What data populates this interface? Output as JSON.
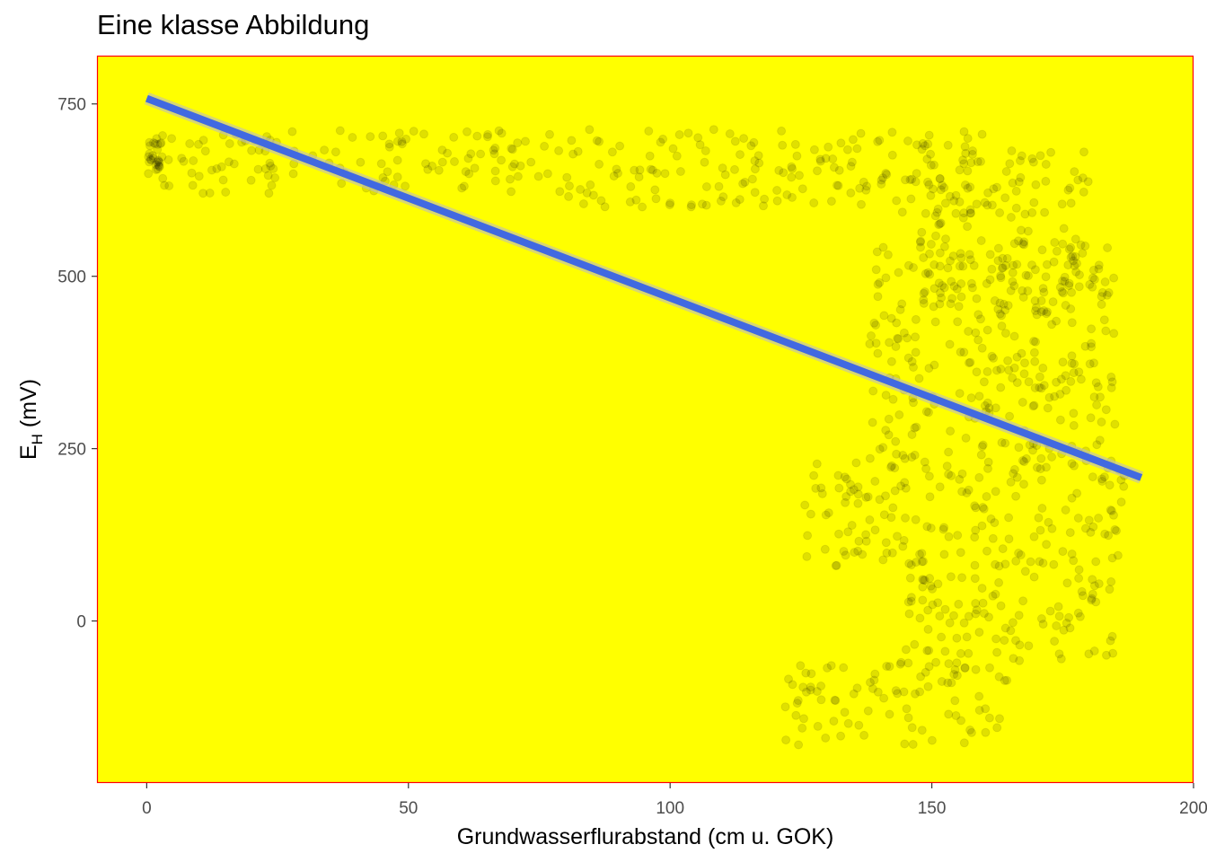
{
  "chart_data": {
    "type": "scatter",
    "title": "Eine klasse Abbildung",
    "xlabel": "Grundwasserflurabstand (cm u. GOK)",
    "ylabel": {
      "main": "E",
      "subscript": "H",
      "suffix": " (mV)"
    },
    "xlim": [
      -9.5,
      200
    ],
    "ylim": [
      -235,
      820
    ],
    "xticks": [
      0,
      50,
      100,
      150,
      200
    ],
    "yticks": [
      0,
      250,
      500,
      750
    ],
    "xtick_labels": [
      "0",
      "50",
      "100",
      "150",
      "200"
    ],
    "ytick_labels": [
      "0",
      "250",
      "500",
      "750"
    ],
    "grid": false,
    "panel_background": "#ffff00",
    "panel_border": "#ff0000",
    "point_color": "#000000",
    "point_alpha": 0.12,
    "fit_line": {
      "method": "linear",
      "color": "#4169e1",
      "x": [
        0,
        190
      ],
      "y": [
        758,
        208
      ]
    },
    "point_clusters": [
      {
        "x": [
          0,
          3
        ],
        "y": [
          650,
          700
        ]
      },
      {
        "x": [
          0,
          35
        ],
        "y": [
          620,
          710
        ]
      },
      {
        "x": [
          35,
          80
        ],
        "y": [
          620,
          712
        ]
      },
      {
        "x": [
          80,
          125
        ],
        "y": [
          600,
          715
        ]
      },
      {
        "x": [
          125,
          160
        ],
        "y": [
          590,
          710
        ]
      },
      {
        "x": [
          148,
          180
        ],
        "y": [
          450,
          690
        ]
      },
      {
        "x": [
          138,
          185
        ],
        "y": [
          230,
          560
        ]
      },
      {
        "x": [
          125,
          188
        ],
        "y": [
          80,
          230
        ]
      },
      {
        "x": [
          145,
          185
        ],
        "y": [
          -60,
          80
        ]
      },
      {
        "x": [
          122,
          165
        ],
        "y": [
          -180,
          -60
        ]
      }
    ]
  }
}
